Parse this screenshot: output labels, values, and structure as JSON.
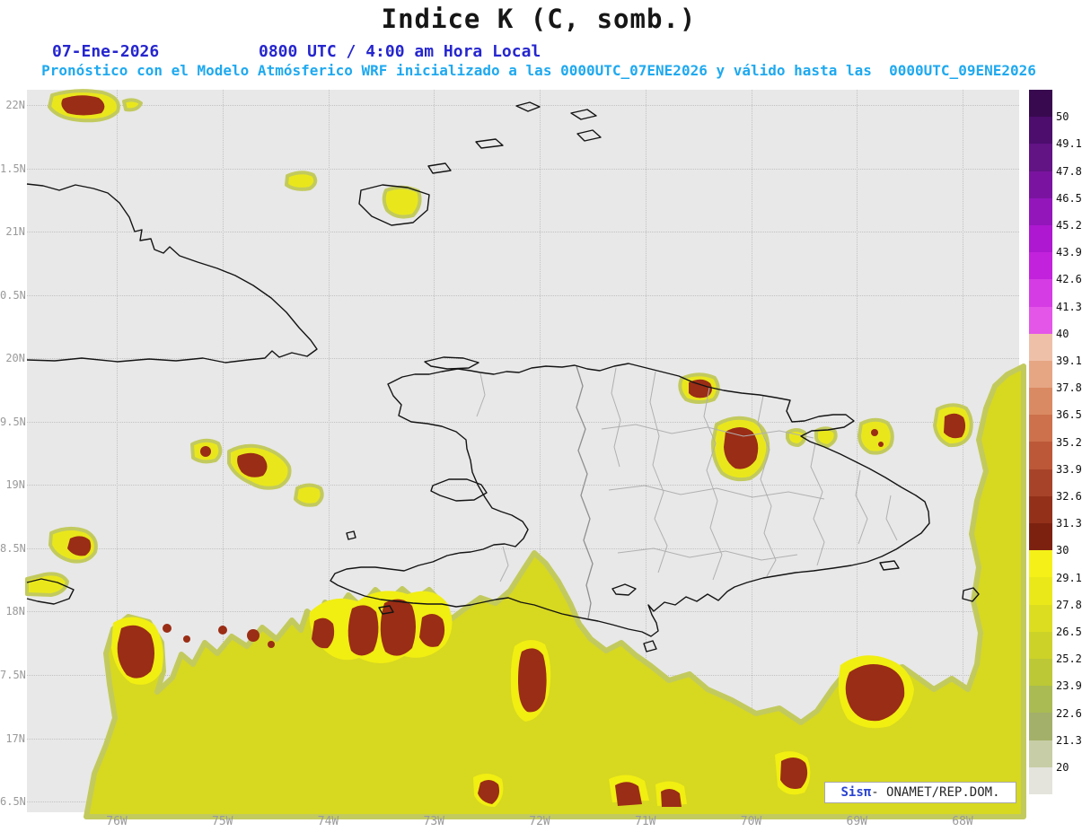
{
  "header": {
    "title": "Indice K (C, somb.)",
    "date": "07-Ene-2026",
    "time": "0800 UTC / 4:00 am Hora Local",
    "forecast": "Pronóstico con el Modelo Atmósferico WRF inicializado a las 0000UTC_07ENE2026 y válido hasta las  0000UTC_09ENE2026"
  },
  "axes": {
    "lat_labels": [
      "22N",
      "1.5N",
      "21N",
      "0.5N",
      "20N",
      "9.5N",
      "19N",
      "8.5N",
      "18N",
      "7.5N",
      "17N",
      "6.5N"
    ],
    "lon_labels": [
      "76W",
      "75W",
      "74W",
      "73W",
      "72W",
      "71W",
      "70W",
      "69W",
      "68W"
    ]
  },
  "colorbar": {
    "labels": [
      "50",
      "49.1",
      "47.8",
      "46.5",
      "45.2",
      "43.9",
      "42.6",
      "41.3",
      "40",
      "39.1",
      "37.8",
      "36.5",
      "35.2",
      "33.9",
      "32.6",
      "31.3",
      "30",
      "29.1",
      "27.8",
      "26.5",
      "25.2",
      "23.9",
      "22.6",
      "21.3",
      "20"
    ],
    "cells": [
      "#38094f",
      "#4c0d6d",
      "#621384",
      "#7a14a0",
      "#9316bb",
      "#ad18d0",
      "#c322dc",
      "#d53ce3",
      "#e356e8",
      "#efc0a8",
      "#e6a684",
      "#da8a62",
      "#cc714c",
      "#bc5838",
      "#a74328",
      "#92301a",
      "#7c2110",
      "#f5f118",
      "#ebe81a",
      "#dcdd20",
      "#ccd228",
      "#bcc836",
      "#a9bb52",
      "#a2b06a",
      "#c7cda6",
      "#e4e4dc"
    ]
  },
  "branding": {
    "system": "Sisπ",
    "org": "- ONAMET/REP.DOM."
  },
  "map": {
    "background": "#e8e8e8",
    "k_field_low": "#d7d820",
    "k_field_bright": "#f1ee12",
    "k_field_high": "#9a2d15",
    "coastline": "#141414",
    "gridline": "#c2c2c2"
  }
}
